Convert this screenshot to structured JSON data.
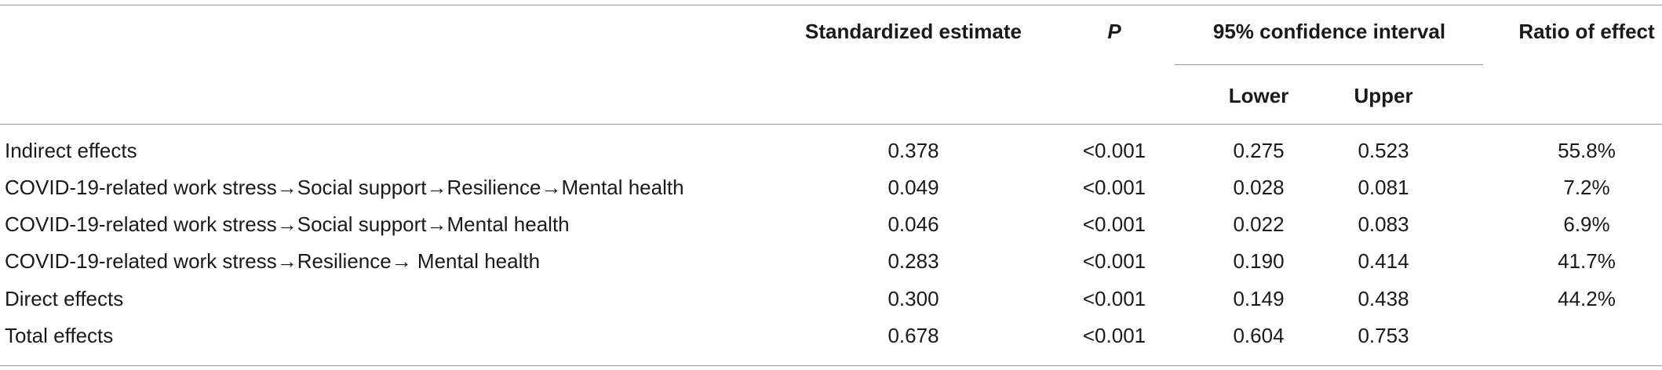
{
  "table": {
    "headers": {
      "estimate": "Standardized estimate",
      "p": "P",
      "ci": "95% confidence interval",
      "ratio": "Ratio of effect",
      "lower": "Lower",
      "upper": "Upper"
    },
    "rows": [
      {
        "label": "Indirect effects",
        "estimate": "0.378",
        "p": "<0.001",
        "lower": "0.275",
        "upper": "0.523",
        "ratio": "55.8%"
      },
      {
        "label": "COVID-19-related work stress→Social support→Resilience→Mental health",
        "estimate": "0.049",
        "p": "<0.001",
        "lower": "0.028",
        "upper": "0.081",
        "ratio": "7.2%"
      },
      {
        "label": "COVID-19-related work stress→Social support→Mental health",
        "estimate": "0.046",
        "p": "<0.001",
        "lower": "0.022",
        "upper": "0.083",
        "ratio": "6.9%"
      },
      {
        "label": "COVID-19-related work stress→Resilience→ Mental health",
        "estimate": "0.283",
        "p": "<0.001",
        "lower": "0.190",
        "upper": "0.414",
        "ratio": "41.7%"
      },
      {
        "label": "Direct effects",
        "estimate": "0.300",
        "p": "<0.001",
        "lower": "0.149",
        "upper": "0.438",
        "ratio": "44.2%"
      },
      {
        "label": "Total effects",
        "estimate": "0.678",
        "p": "<0.001",
        "lower": "0.604",
        "upper": "0.753",
        "ratio": ""
      }
    ]
  }
}
